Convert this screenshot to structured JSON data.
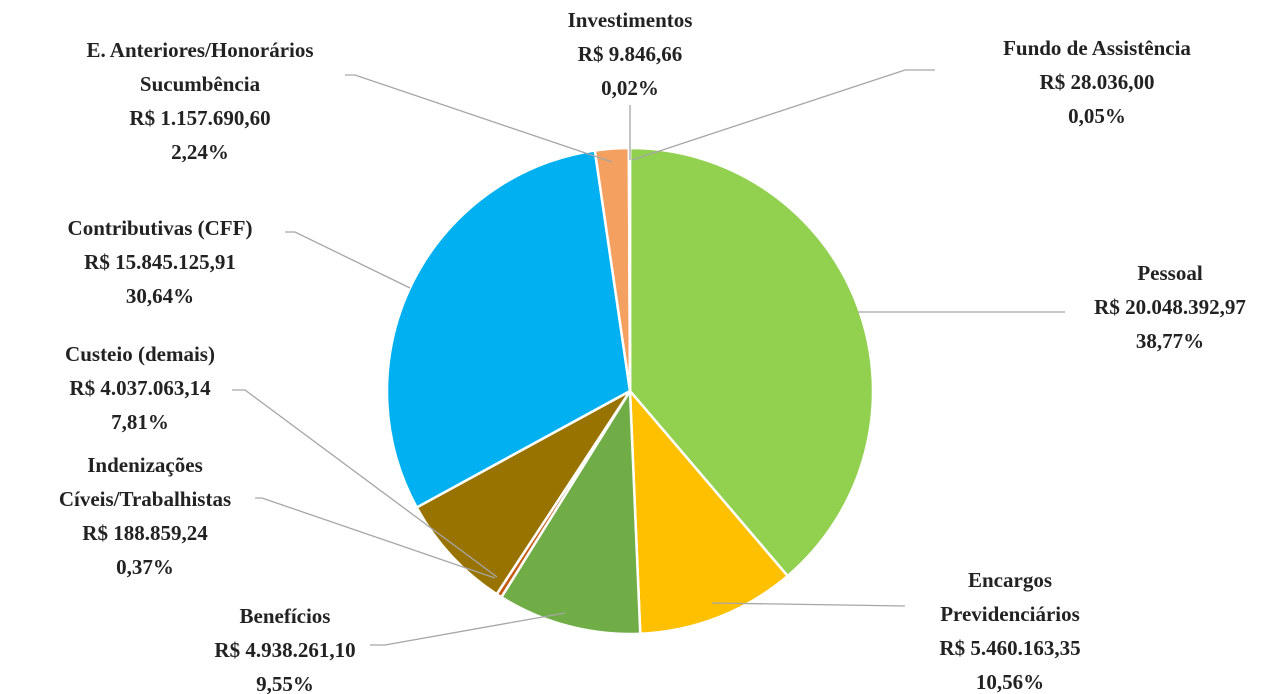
{
  "chart_data": {
    "type": "pie",
    "categories": [
      [
        "Pessoal"
      ],
      [
        "Encargos",
        "Previdenciários"
      ],
      [
        "Benefícios"
      ],
      [
        "Indenizações",
        "Cíveis/Trabalhistas"
      ],
      [
        "Custeio (demais)"
      ],
      [
        "Contributivas (CFF)"
      ],
      [
        "E. Anteriores/Honorários",
        "Sucumbência"
      ],
      [
        "Investimentos"
      ],
      [
        "Fundo de Assistência"
      ]
    ],
    "values": [
      20048392.97,
      5460163.35,
      4938261.1,
      188859.24,
      4037063.14,
      15845125.91,
      1157690.6,
      9846.66,
      28036.0
    ],
    "value_labels": [
      "R$ 20.048.392,97",
      "R$ 5.460.163,35",
      "R$ 4.938.261,10",
      "R$ 188.859,24",
      "R$ 4.037.063,14",
      "R$ 15.845.125,91",
      "R$ 1.157.690,60",
      "R$ 9.846,66",
      "R$ 28.036,00"
    ],
    "percents": [
      38.77,
      10.56,
      9.55,
      0.37,
      7.81,
      30.64,
      2.24,
      0.02,
      0.05
    ],
    "percent_labels": [
      "38,77%",
      "10,56%",
      "9,55%",
      "0,37%",
      "7,81%",
      "30,64%",
      "2,24%",
      "0,02%",
      "0,05%"
    ],
    "colors": [
      "#92d050",
      "#ffc000",
      "#70ad47",
      "#c55a11",
      "#997300",
      "#00b0f0",
      "#f4a060",
      "#4472c4",
      "#a5a5a5"
    ]
  }
}
